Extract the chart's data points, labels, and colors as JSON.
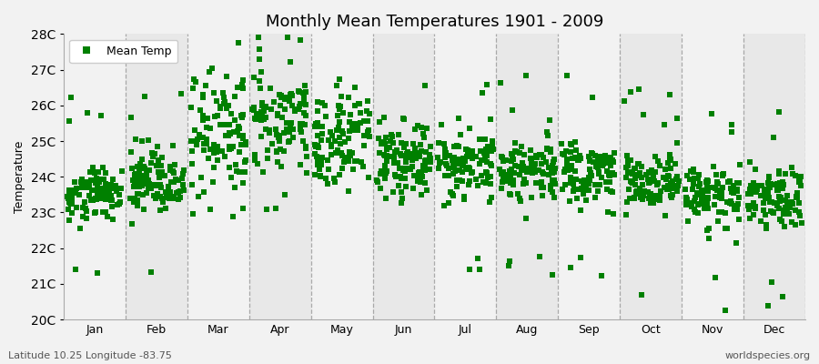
{
  "title": "Monthly Mean Temperatures 1901 - 2009",
  "ylabel": "Temperature",
  "xlabel_months": [
    "Jan",
    "Feb",
    "Mar",
    "Apr",
    "May",
    "Jun",
    "Jul",
    "Aug",
    "Sep",
    "Oct",
    "Nov",
    "Dec"
  ],
  "ylim": [
    20,
    28
  ],
  "yticks": [
    20,
    21,
    22,
    23,
    24,
    25,
    26,
    27,
    28
  ],
  "ytick_labels": [
    "20C",
    "21C",
    "22C",
    "23C",
    "24C",
    "25C",
    "26C",
    "27C",
    "28C"
  ],
  "marker_color": "#008000",
  "marker": "s",
  "marker_size": 4,
  "bg_light": "#f2f2f2",
  "bg_dark": "#e8e8e8",
  "grid_color": "#999999",
  "legend_label": "Mean Temp",
  "subtitle_left": "Latitude 10.25 Longitude -83.75",
  "subtitle_right": "worldspecies.org",
  "n_years": 109,
  "monthly_means": [
    23.55,
    23.85,
    25.1,
    25.6,
    25.05,
    24.3,
    24.35,
    24.2,
    24.1,
    23.85,
    23.5,
    23.45
  ],
  "monthly_stds": [
    0.38,
    0.55,
    0.75,
    0.72,
    0.65,
    0.52,
    0.48,
    0.48,
    0.45,
    0.42,
    0.45,
    0.42
  ],
  "seed": 42
}
